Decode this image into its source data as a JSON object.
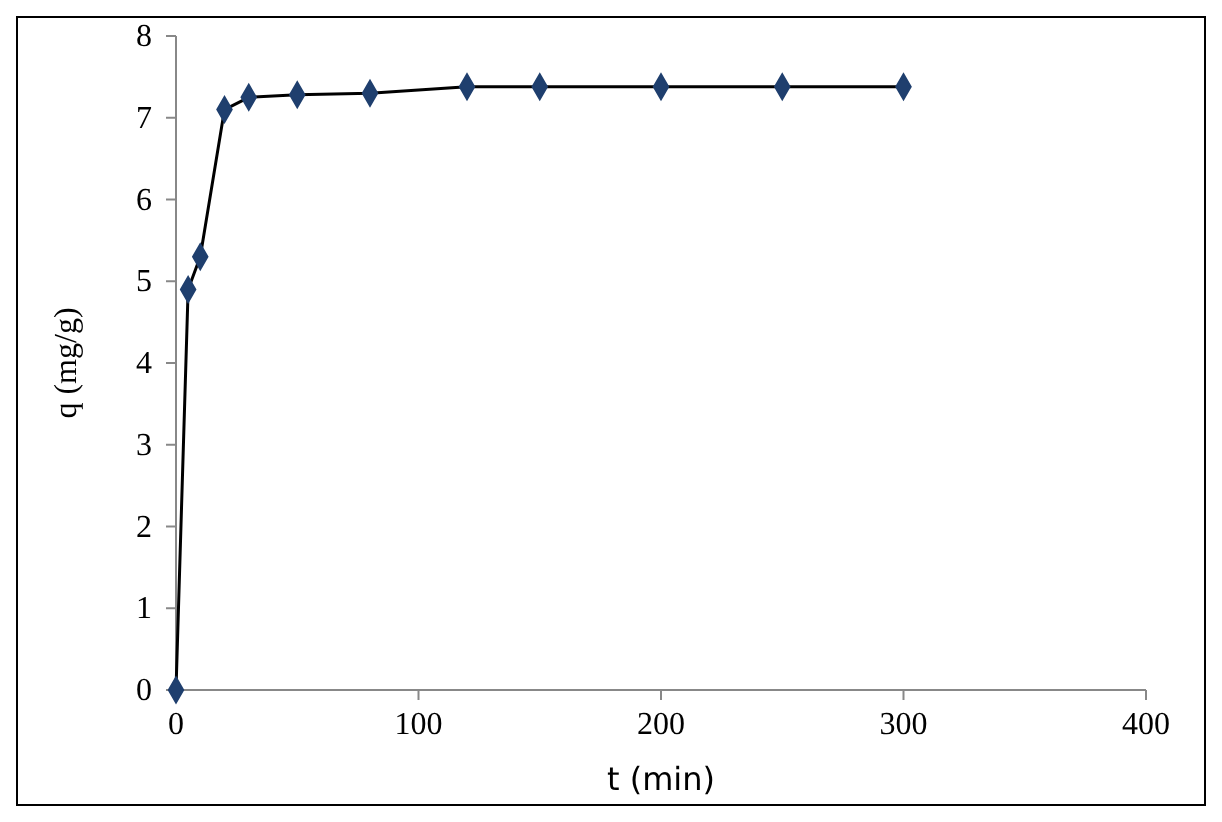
{
  "chart_data": {
    "type": "line",
    "xlabel": "t (min)",
    "ylabel": "q (mg/g)",
    "series": [
      {
        "color": "#000000",
        "x": [
          0,
          5,
          10,
          20,
          30,
          50,
          80,
          120,
          150,
          200,
          250,
          300
        ],
        "values": [
          0,
          4.9,
          5.3,
          7.1,
          7.25,
          7.28,
          7.3,
          7.38,
          7.38,
          7.38,
          7.38,
          7.38
        ]
      }
    ],
    "xlim": [
      0,
      400
    ],
    "xticks": [
      0,
      100,
      200,
      300,
      400
    ],
    "ylim": [
      0,
      8
    ],
    "yticks": [
      0,
      1,
      2,
      3,
      4,
      5,
      6,
      7,
      8
    ],
    "grid": false,
    "marker": "diamond",
    "line_style": "solid"
  }
}
